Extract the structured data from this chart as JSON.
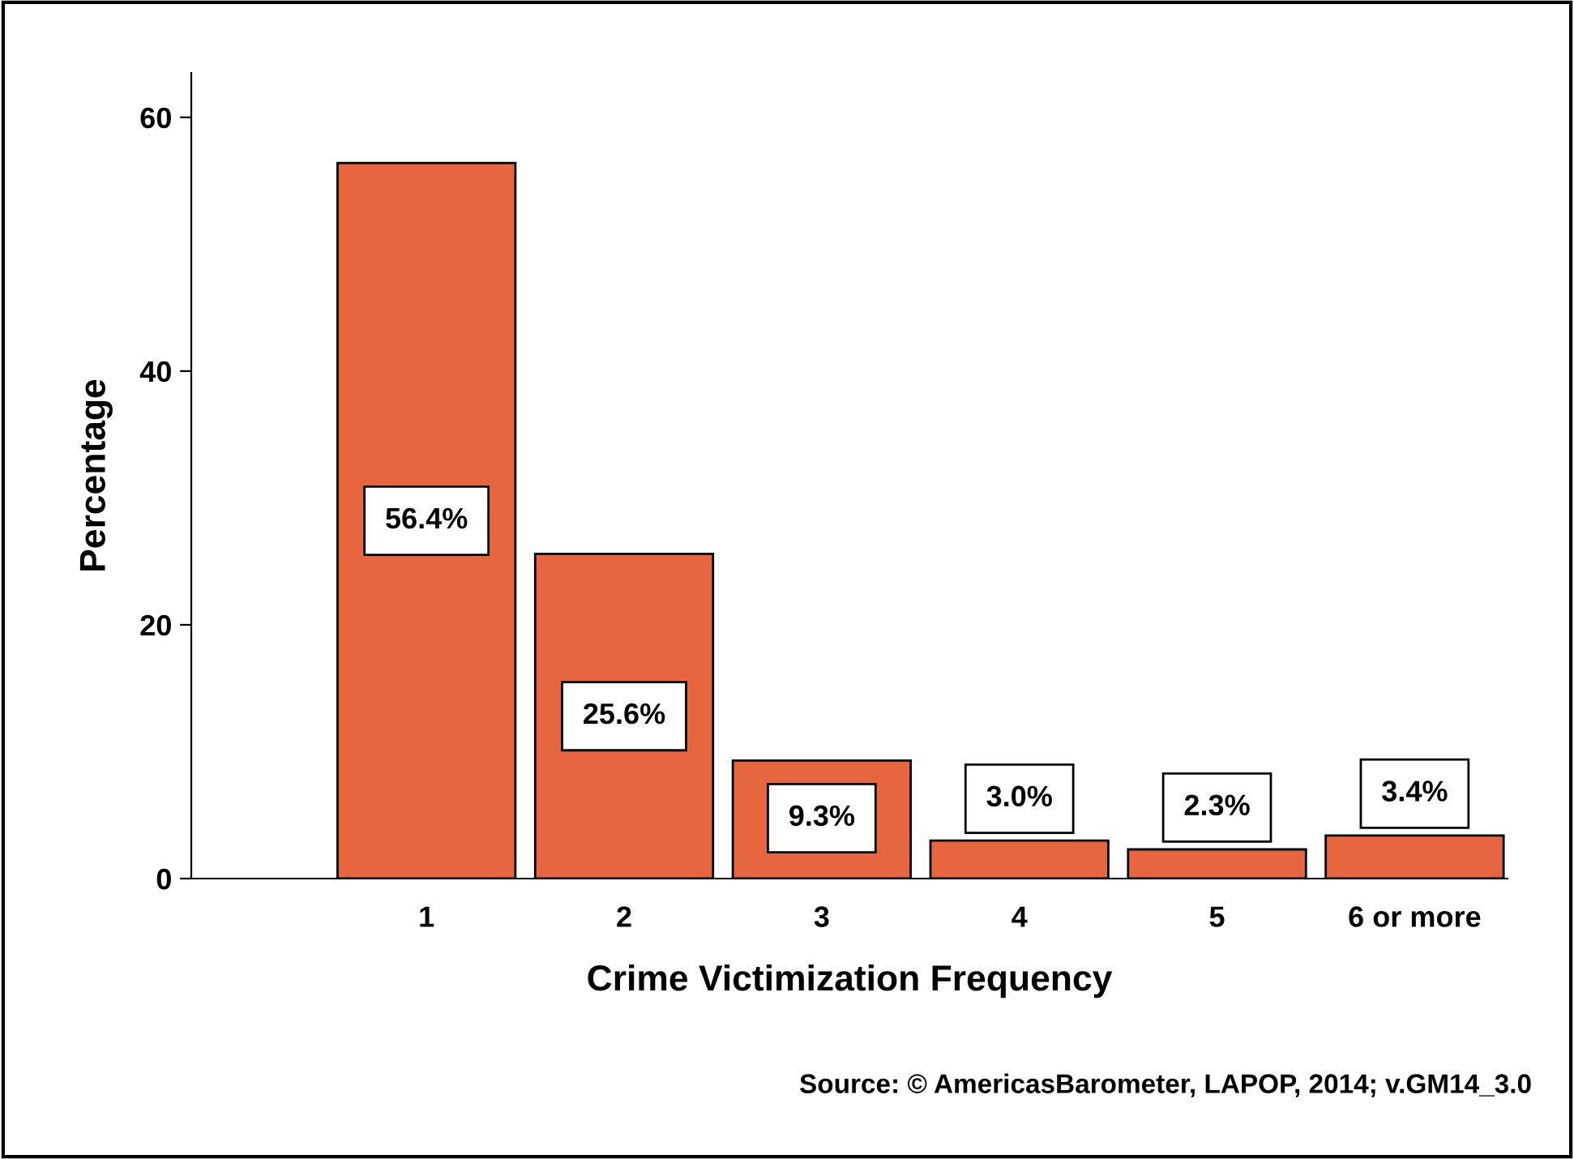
{
  "chart_data": {
    "type": "bar",
    "xlabel": "Crime Victimization Frequency",
    "ylabel": "Percentage",
    "categories": [
      "1",
      "2",
      "3",
      "4",
      "5",
      "6 or more"
    ],
    "values": [
      56.4,
      25.6,
      9.3,
      3.0,
      2.3,
      3.4
    ],
    "value_labels": [
      "56.4%",
      "25.6%",
      "9.3%",
      "3.0%",
      "2.3%",
      "3.4%"
    ],
    "color": "#e8663f",
    "ylim": [
      0,
      63.5
    ],
    "yticks": [
      0,
      20,
      40,
      60
    ],
    "grid": false,
    "legend": false,
    "annotations": [
      "Source: © AmericasBarometer, LAPOP, 2014; v.GM14_3.0"
    ]
  }
}
